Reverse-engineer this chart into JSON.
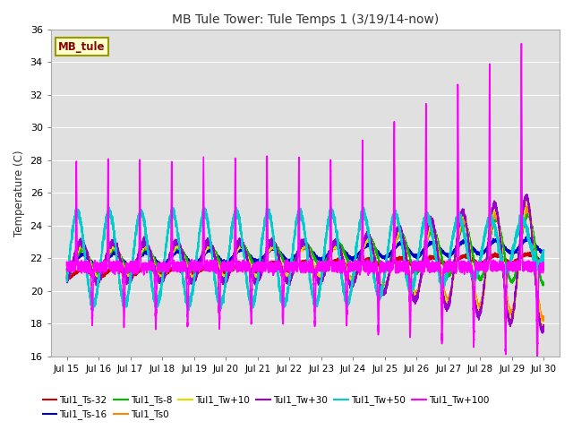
{
  "title": "MB Tule Tower: Tule Temps 1 (3/19/14-now)",
  "ylabel": "Temperature (C)",
  "ylim": [
    16,
    36
  ],
  "xlim": [
    14.5,
    30.5
  ],
  "xticks": [
    15,
    16,
    17,
    18,
    19,
    20,
    21,
    22,
    23,
    24,
    25,
    26,
    27,
    28,
    29,
    30
  ],
  "xtick_labels": [
    "Jul 15",
    "Jul 16",
    "Jul 17",
    "Jul 18",
    "Jul 19",
    "Jul 20",
    "Jul 21",
    "Jul 22",
    "Jul 23",
    "Jul 24",
    "Jul 25",
    "Jul 26",
    "Jul 27",
    "Jul 28",
    "Jul 29",
    "Jul 30"
  ],
  "yticks": [
    16,
    18,
    20,
    22,
    24,
    26,
    28,
    30,
    32,
    34,
    36
  ],
  "bg_color": "#e0e0e0",
  "fig_color": "#ffffff",
  "grid_color": "#ffffff",
  "legend_label": "MB_tule",
  "legend_text_color": "#8b0000",
  "legend_bg": "#ffffcc",
  "legend_border": "#999900",
  "series": [
    {
      "label": "Tul1_Ts-32",
      "color": "#cc0000",
      "lw": 1.2
    },
    {
      "label": "Tul1_Ts-16",
      "color": "#0000cc",
      "lw": 1.2
    },
    {
      "label": "Tul1_Ts-8",
      "color": "#00bb00",
      "lw": 1.2
    },
    {
      "label": "Tul1_Ts0",
      "color": "#ff8800",
      "lw": 1.2
    },
    {
      "label": "Tul1_Tw+10",
      "color": "#dddd00",
      "lw": 1.2
    },
    {
      "label": "Tul1_Tw+30",
      "color": "#9900cc",
      "lw": 1.2
    },
    {
      "label": "Tul1_Tw+50",
      "color": "#00cccc",
      "lw": 1.2
    },
    {
      "label": "Tul1_Tw+100",
      "color": "#ff00ff",
      "lw": 1.2
    }
  ]
}
